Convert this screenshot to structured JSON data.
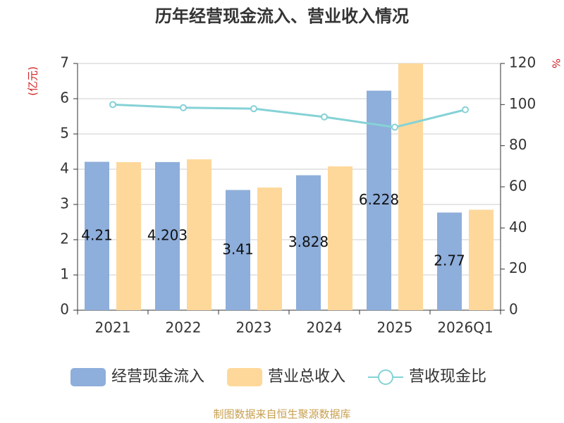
{
  "chart_data": {
    "type": "bar",
    "title": "历年经营现金流入、营业收入情况",
    "y_label": "(亿元)",
    "y2_label": "%",
    "categories": [
      "2021",
      "2022",
      "2023",
      "2024",
      "2025",
      "2026Q1"
    ],
    "series": [
      {
        "name": "经营现金流入",
        "type": "bar",
        "color": "#8eaedb",
        "values": [
          4.21,
          4.203,
          3.41,
          3.828,
          6.228,
          2.77
        ],
        "show_labels": true
      },
      {
        "name": "营业总收入",
        "type": "bar",
        "color": "#fed89a",
        "values": [
          4.2,
          4.28,
          3.48,
          4.08,
          7.0,
          2.85
        ]
      },
      {
        "name": "营收现金比",
        "type": "line",
        "axis": "y2",
        "color": "#85d2d6",
        "values": [
          100,
          98.5,
          98,
          94,
          89,
          97.5
        ]
      }
    ],
    "ylim": [
      0,
      7
    ],
    "yticks": [
      0,
      1,
      2,
      3,
      4,
      5,
      6,
      7
    ],
    "y2lim": [
      0,
      120
    ],
    "y2ticks": [
      0,
      20,
      40,
      60,
      80,
      100,
      120
    ],
    "grid": true,
    "legend": "bottom",
    "source": "制图数据来自恒生聚源数据库"
  }
}
